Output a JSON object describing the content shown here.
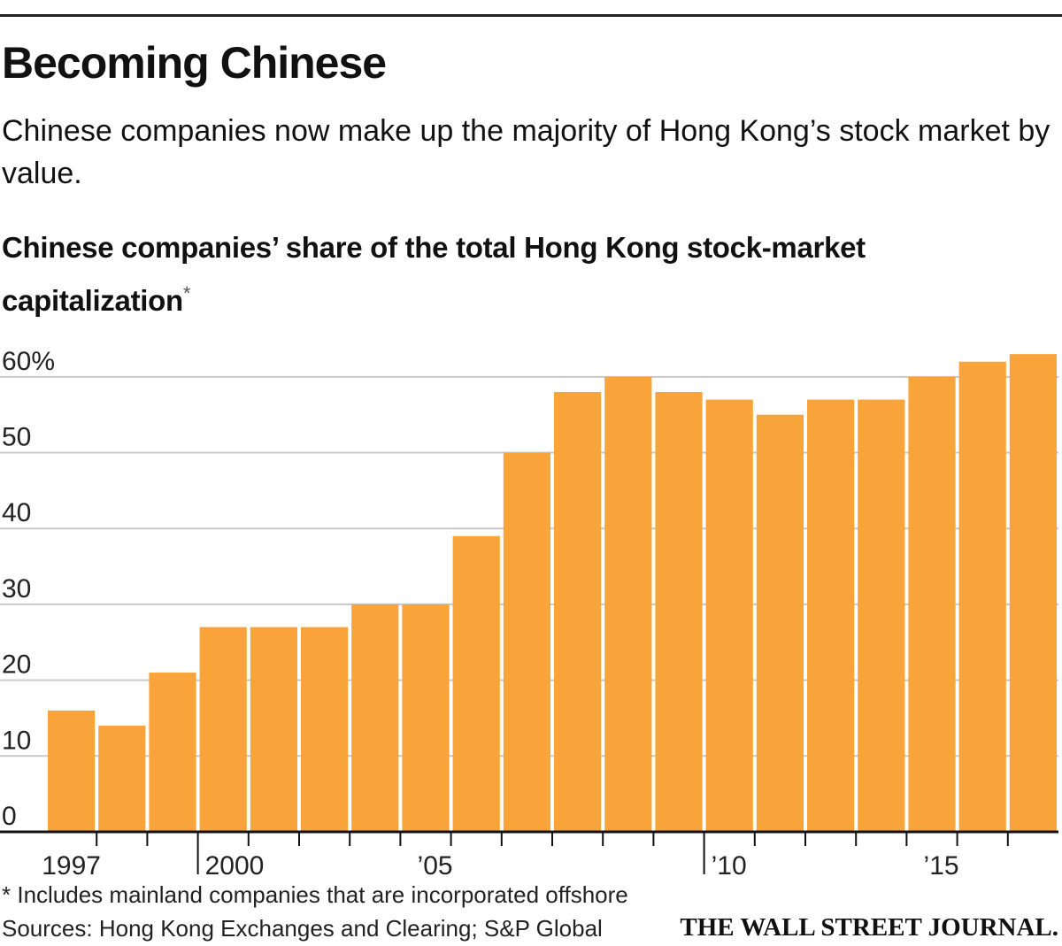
{
  "chart_data": {
    "type": "bar",
    "title": "Becoming Chinese",
    "subtitle": "Chinese companies now make up the majority of Hong Kong’s stock market by value.",
    "chart_title": "Chinese companies’ share of the total Hong Kong stock-market capitalization",
    "chart_title_marker": "*",
    "footnote": "* Includes mainland companies that are incorporated offshore",
    "source": "Sources: Hong Kong Exchanges and Clearing; S&P Global",
    "credit": "THE WALL STREET JOURNAL.",
    "categories": [
      "1997",
      null,
      null,
      "2000",
      null,
      null,
      null,
      null,
      "’05",
      null,
      null,
      null,
      null,
      "’10",
      null,
      null,
      null,
      null,
      "’15",
      null
    ],
    "values": [
      16,
      14,
      21,
      27,
      27,
      27,
      30,
      30,
      39,
      50,
      58,
      60,
      58,
      57,
      55,
      57,
      57,
      60,
      62,
      63
    ],
    "color": "#f9a43a",
    "ylim": [
      0,
      65
    ],
    "yticks": [
      0,
      10,
      20,
      30,
      40,
      50,
      {
        "value": 60,
        "label": "60%"
      }
    ],
    "grid": true
  }
}
